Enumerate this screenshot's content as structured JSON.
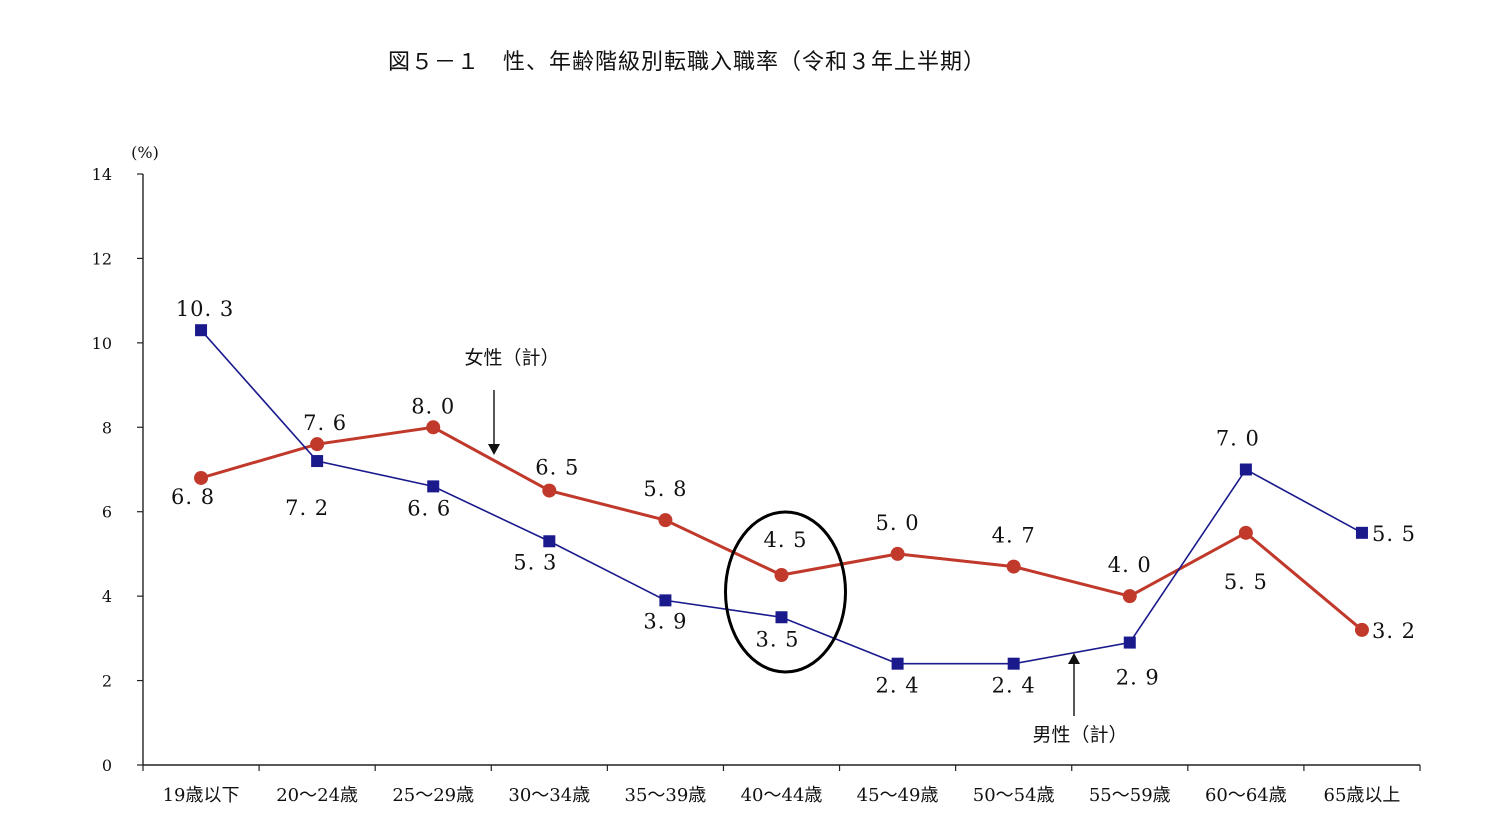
{
  "title": "図５－１　性、年齢階級別転職入職率（令和３年上半期）",
  "chart_data": {
    "type": "line",
    "title": "図５－１　性、年齢階級別転職入職率（令和３年上半期）",
    "xlabel": "",
    "ylabel": "(%)",
    "ylim": [
      0,
      14
    ],
    "yticks": [
      "0",
      "2",
      "4",
      "6",
      "8",
      "10",
      "12",
      "14"
    ],
    "categories": [
      "19歳以下",
      "20〜24歳",
      "25〜29歳",
      "30〜34歳",
      "35〜39歳",
      "40〜44歳",
      "45〜49歳",
      "50〜54歳",
      "55〜59歳",
      "60〜64歳",
      "65歳以上"
    ],
    "series": [
      {
        "name": "女性（計）",
        "color": "#c0392b",
        "marker": "circle",
        "values": [
          6.8,
          7.6,
          8.0,
          6.5,
          5.8,
          4.5,
          5.0,
          4.7,
          4.0,
          5.5,
          3.2
        ],
        "labels": [
          "6.8",
          "7.6",
          "8.0",
          "6.5",
          "5.8",
          "4.5",
          "5.0",
          "4.7",
          "4.0",
          "5.5",
          "3.2"
        ]
      },
      {
        "name": "男性（計）",
        "color": "#1a1a8c",
        "marker": "square",
        "values": [
          10.3,
          7.2,
          6.6,
          5.3,
          3.9,
          3.5,
          2.4,
          2.4,
          2.9,
          7.0,
          5.5
        ],
        "labels": [
          "10.3",
          "7.2",
          "6.6",
          "5.3",
          "3.9",
          "3.5",
          "2.4",
          "2.4",
          "2.9",
          "7.0",
          "5.5"
        ]
      }
    ],
    "highlight_category": "40〜44歳"
  }
}
